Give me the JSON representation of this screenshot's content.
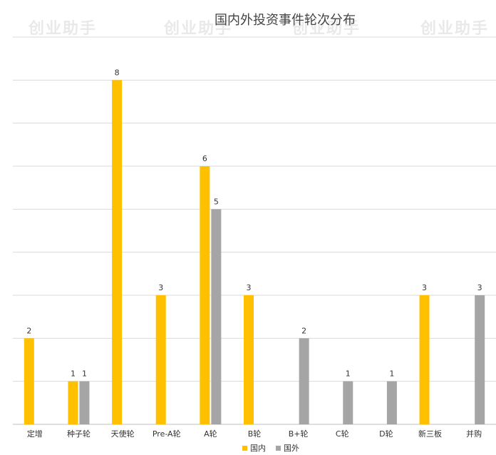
{
  "watermark": "创业助手",
  "chart_data": {
    "type": "bar",
    "title": "国内外投资事件轮次分布",
    "xlabel": "",
    "ylabel": "",
    "ylim": [
      0,
      9
    ],
    "grid": true,
    "legend_position": "bottom",
    "categories": [
      "定增",
      "种子轮",
      "天使轮",
      "Pre-A轮",
      "A轮",
      "B轮",
      "B+轮",
      "C轮",
      "D轮",
      "新三板",
      "并购"
    ],
    "series": [
      {
        "name": "国内",
        "color": "#FFC000",
        "values": [
          2,
          1,
          8,
          3,
          6,
          3,
          null,
          null,
          null,
          3,
          null
        ]
      },
      {
        "name": "国外",
        "color": "#A5A5A5",
        "values": [
          null,
          1,
          null,
          null,
          5,
          null,
          2,
          1,
          1,
          null,
          3
        ]
      }
    ]
  }
}
